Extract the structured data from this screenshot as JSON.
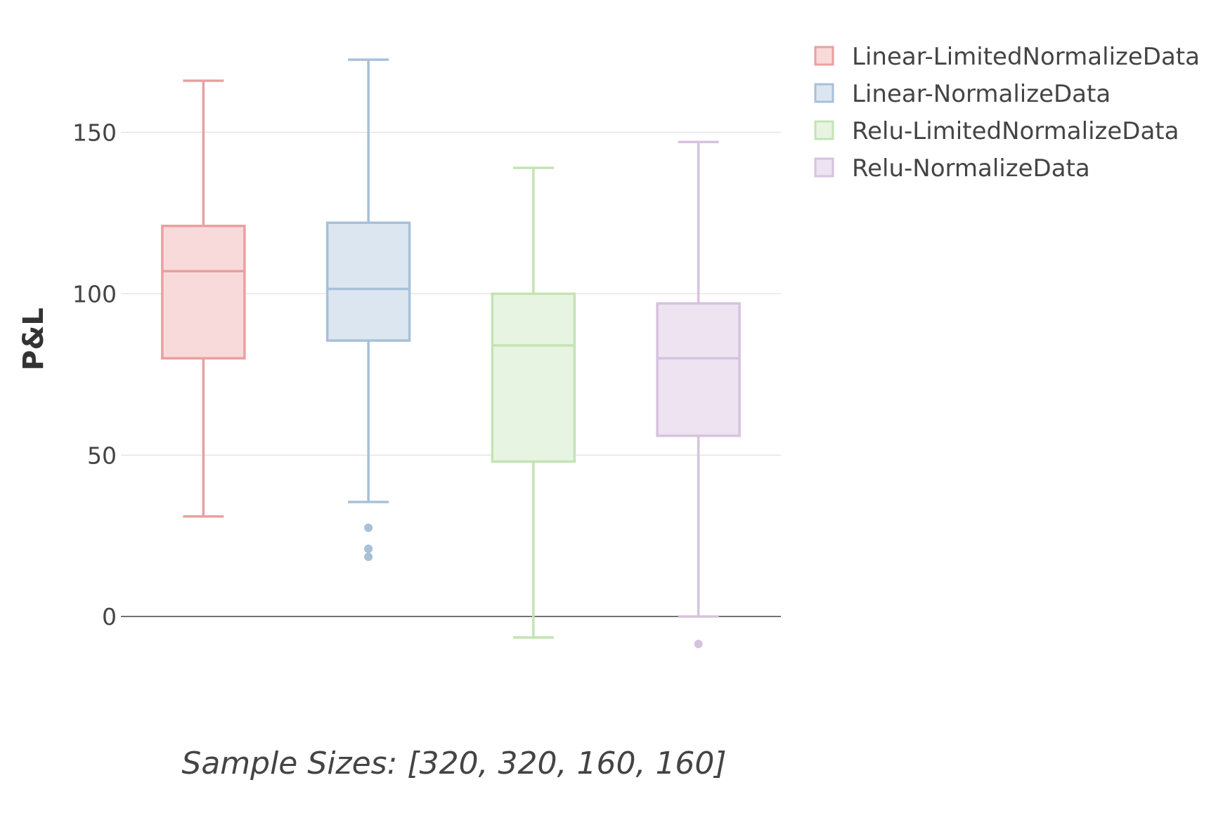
{
  "chart_data": {
    "type": "box",
    "title": "",
    "xlabel": "Sample Sizes: [320, 320, 160, 160]",
    "ylabel": "P&L",
    "ylim": [
      -26.5,
      191
    ],
    "yticks": [
      0,
      50,
      100,
      150
    ],
    "grid": true,
    "zero_line": true,
    "legend_position": "top-right",
    "series": [
      {
        "name": "Linear-LimitedNormalizeData",
        "color": "#e8a0a0",
        "fill": "#f9dada",
        "whisker_low": 31,
        "q1": 80,
        "median": 107,
        "q3": 121,
        "whisker_high": 166,
        "outliers": []
      },
      {
        "name": "Linear-NormalizeData",
        "color": "#a8c0d8",
        "fill": "#dce6f1",
        "whisker_low": 35.5,
        "q1": 85.5,
        "median": 101.5,
        "q3": 122,
        "whisker_high": 172.5,
        "outliers": [
          27.5,
          21,
          18.5
        ]
      },
      {
        "name": "Relu-LimitedNormalizeData",
        "color": "#c4e3b4",
        "fill": "#e8f4e2",
        "whisker_low": -6.5,
        "q1": 48,
        "median": 84,
        "q3": 100,
        "whisker_high": 139,
        "outliers": []
      },
      {
        "name": "Relu-NormalizeData",
        "color": "#d6c2de",
        "fill": "#ede3f1",
        "whisker_low": 0,
        "q1": 56,
        "median": 80,
        "q3": 97,
        "whisker_high": 147,
        "outliers": [
          -8.5
        ]
      }
    ]
  }
}
